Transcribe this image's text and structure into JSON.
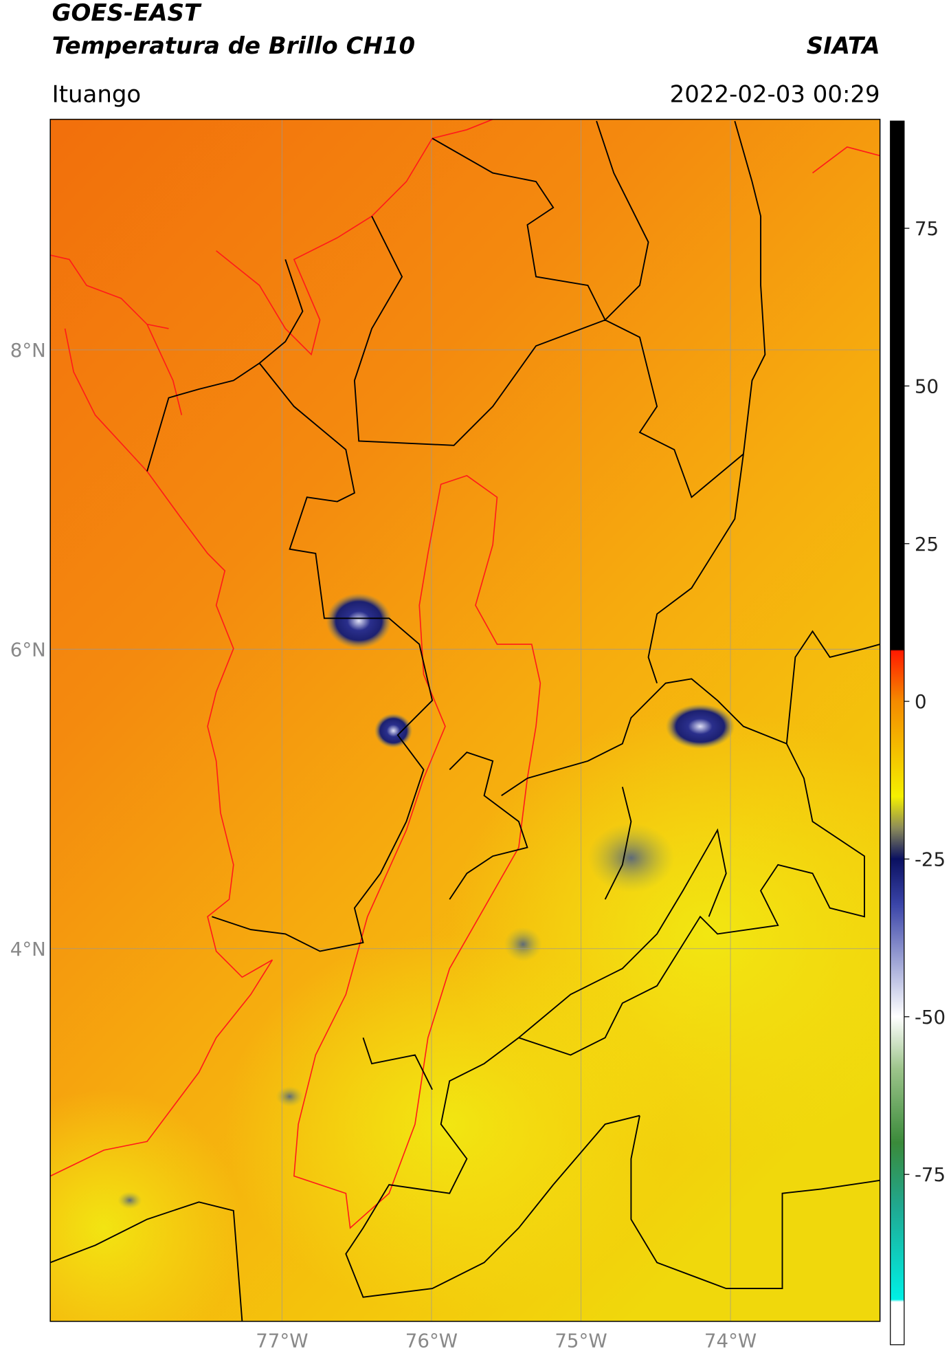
{
  "header": {
    "title": "GOES-EAST",
    "subtitle": "Temperatura de Brillo CH10",
    "brand": "SIATA",
    "location": "Ituango",
    "datetime": "2022-02-03 00:29"
  },
  "map": {
    "xlim": [
      -78.55,
      -73.0
    ],
    "ylim": [
      1.51,
      9.54
    ],
    "lon_ticks": [
      {
        "value": -77,
        "label": "77°W"
      },
      {
        "value": -76,
        "label": "76°W"
      },
      {
        "value": -75,
        "label": "75°W"
      },
      {
        "value": -74,
        "label": "74°W"
      }
    ],
    "lat_ticks": [
      {
        "value": 8,
        "label": "8°N"
      },
      {
        "value": 6,
        "label": "6°N"
      },
      {
        "value": 4,
        "label": "4°N"
      }
    ],
    "grid": true
  },
  "colorbar": {
    "lim": [
      -102,
      92
    ],
    "ticks": [
      75,
      50,
      25,
      0,
      -25,
      -50,
      -75
    ]
  }
}
